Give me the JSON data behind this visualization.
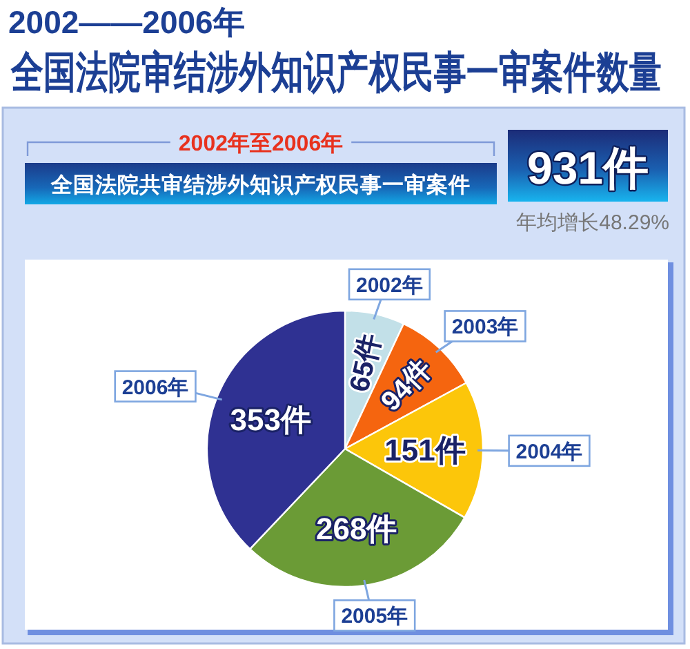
{
  "chart_data": {
    "type": "pie",
    "title": "2002——2006年",
    "subtitle": "全国法院审结涉外知识产权民事一审案件数量",
    "categories": [
      "2002年",
      "2003年",
      "2004年",
      "2005年",
      "2006年"
    ],
    "values": [
      65,
      94,
      151,
      268,
      353
    ],
    "colors": [
      "#c2e0e8",
      "#f5650f",
      "#fcc60a",
      "#6b9b36",
      "#2f3192"
    ],
    "value_labels": [
      "65件",
      "94件",
      "151件",
      "268件",
      "353件"
    ],
    "annotations": [
      "2002年至2006年",
      "全国法院共审结涉外知识产权民事一审案件",
      "931件",
      "年均增长48.29%"
    ]
  }
}
